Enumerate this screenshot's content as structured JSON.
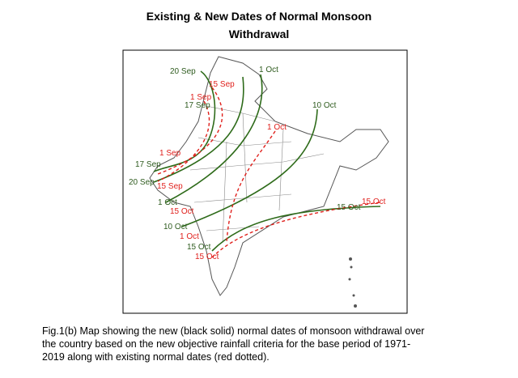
{
  "title": {
    "lines": [
      "Existing & New Dates of Normal Monsoon",
      "Withdrawal"
    ]
  },
  "map": {
    "new_labels": [
      "20 Sep",
      "1 Oct",
      "17 Sep",
      "10 Oct",
      "17 Sep",
      "20 Sep",
      "1 Oct",
      "10 Oct",
      "15 Oct",
      "15 Oct"
    ],
    "existing_labels": [
      "15 Sep",
      "1 Sep",
      "1 Oct",
      "1 Sep",
      "15 Sep",
      "15 Oct",
      "1 Oct",
      "15 Oct",
      "15 Oct"
    ]
  },
  "caption": {
    "lines": [
      "Fig.1(b) Map showing the new (black solid) normal dates of monsoon withdrawal over",
      "the country based on the new objective rainfall criteria for the base period of 1971-",
      "2019 along with existing normal dates (red dotted)."
    ]
  }
}
